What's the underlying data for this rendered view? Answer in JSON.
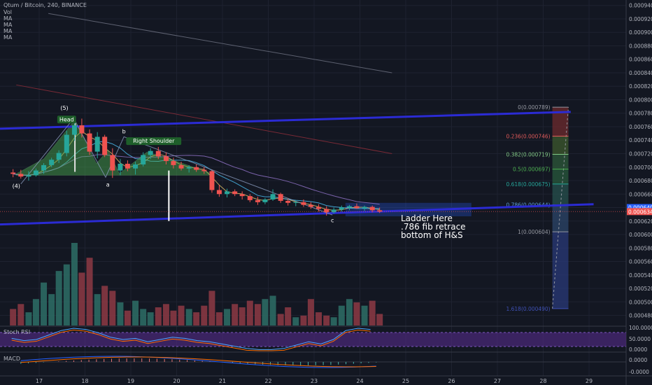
{
  "header": {
    "symbol_line": "Qtum / Bitcoin, 240, BINANCE",
    "indicators": [
      "Vol",
      "MA",
      "MA",
      "MA",
      "MA"
    ]
  },
  "annotations": {
    "head": "Head",
    "right_shoulder": "Right Shoulder",
    "wave_5": "(5)",
    "wave_4": "(4)",
    "wave_a": "a",
    "wave_b": "b",
    "wave_c": "c",
    "note_lines": [
      "Ladder Here",
      ".786 fib retrace",
      "bottom of H&S"
    ]
  },
  "fib_levels": [
    {
      "label": "0(0.000789)",
      "value": 0.000789,
      "color": "#9598a1"
    },
    {
      "label": "0.236(0.000746)",
      "value": 0.000746,
      "color": "#e05a5a"
    },
    {
      "label": "0.382(0.000719)",
      "value": 0.000719,
      "color": "#81c784"
    },
    {
      "label": "0.5(0.000697)",
      "value": 0.000697,
      "color": "#4caf50"
    },
    {
      "label": "0.618(0.000675)",
      "value": 0.000675,
      "color": "#26a69a"
    },
    {
      "label": "0.786(0.000644)",
      "value": 0.000644,
      "color": "#5d9bd8"
    },
    {
      "label": "1(0.000604)",
      "value": 0.000604,
      "color": "#9598a1"
    },
    {
      "label": "1.618(0.000490)",
      "value": 0.00049,
      "color": "#3f51b5"
    }
  ],
  "price_badges": [
    {
      "text": "0.000640",
      "value": 0.00064,
      "color": "#2962ff"
    },
    {
      "text": "0.000634",
      "value": 0.000634,
      "color": "#ef5350"
    }
  ],
  "panes": {
    "stoch_rsi": {
      "label": "Stoch RSI",
      "ticks": [
        "100.0000",
        "50.0000",
        "0.0000"
      ]
    },
    "macd": {
      "label": "MACD",
      "ticks": [
        "0.0000",
        "-0.0000"
      ]
    }
  },
  "colors": {
    "up": "#26a69a",
    "down": "#ef5350",
    "trendline": "#2b2bd4",
    "pattern_fill": "#4caf50"
  },
  "chart_data": {
    "type": "candlestick",
    "title": "Qtum / Bitcoin, 240, BINANCE",
    "y_ticks": [
      "0.000940",
      "0.000920",
      "0.000900",
      "0.000880",
      "0.000860",
      "0.000840",
      "0.000820",
      "0.000800",
      "0.000780",
      "0.000760",
      "0.000740",
      "0.000720",
      "0.000700",
      "0.000680",
      "0.000660",
      "0.000640",
      "0.000620",
      "0.000600",
      "0.000580",
      "0.000560",
      "0.000540",
      "0.000520",
      "0.000500",
      "0.000480"
    ],
    "x_ticks": [
      "17",
      "18",
      "19",
      "20",
      "21",
      "22",
      "23",
      "24",
      "25",
      "26",
      "27",
      "28",
      "29"
    ],
    "ylim": [
      0.000465,
      0.000948
    ],
    "xlim": [
      16.3,
      29.5
    ],
    "candles": [
      {
        "t": 16.43,
        "o": 0.000692,
        "h": 0.000697,
        "l": 0.000685,
        "c": 0.00069
      },
      {
        "t": 16.6,
        "o": 0.00069,
        "h": 0.000696,
        "l": 0.000683,
        "c": 0.000686
      },
      {
        "t": 16.77,
        "o": 0.000686,
        "h": 0.000694,
        "l": 0.00068,
        "c": 0.000688
      },
      {
        "t": 16.93,
        "o": 0.000688,
        "h": 0.000698,
        "l": 0.000686,
        "c": 0.000695
      },
      {
        "t": 17.1,
        "o": 0.000695,
        "h": 0.000706,
        "l": 0.00069,
        "c": 0.000703
      },
      {
        "t": 17.27,
        "o": 0.000703,
        "h": 0.000714,
        "l": 0.0007,
        "c": 0.000711
      },
      {
        "t": 17.43,
        "o": 0.000711,
        "h": 0.000725,
        "l": 0.000706,
        "c": 0.000721
      },
      {
        "t": 17.6,
        "o": 0.000721,
        "h": 0.000754,
        "l": 0.000716,
        "c": 0.000748
      },
      {
        "t": 17.77,
        "o": 0.000748,
        "h": 0.00077,
        "l": 0.000739,
        "c": 0.000762
      },
      {
        "t": 17.93,
        "o": 0.000762,
        "h": 0.000772,
        "l": 0.000744,
        "c": 0.00075
      },
      {
        "t": 18.1,
        "o": 0.00075,
        "h": 0.000756,
        "l": 0.000718,
        "c": 0.000723
      },
      {
        "t": 18.27,
        "o": 0.000723,
        "h": 0.000752,
        "l": 0.000713,
        "c": 0.000745
      },
      {
        "t": 18.43,
        "o": 0.000745,
        "h": 0.000748,
        "l": 0.000715,
        "c": 0.000718
      },
      {
        "t": 18.6,
        "o": 0.000718,
        "h": 0.000728,
        "l": 0.000684,
        "c": 0.000695
      },
      {
        "t": 18.77,
        "o": 0.000695,
        "h": 0.000712,
        "l": 0.000688,
        "c": 0.000705
      },
      {
        "t": 18.93,
        "o": 0.000705,
        "h": 0.00071,
        "l": 0.000694,
        "c": 0.000698
      },
      {
        "t": 19.1,
        "o": 0.000698,
        "h": 0.000708,
        "l": 0.000689,
        "c": 0.000704
      },
      {
        "t": 19.27,
        "o": 0.000704,
        "h": 0.000722,
        "l": 0.000701,
        "c": 0.000718
      },
      {
        "t": 19.43,
        "o": 0.000718,
        "h": 0.000728,
        "l": 0.000712,
        "c": 0.000724
      },
      {
        "t": 19.6,
        "o": 0.000724,
        "h": 0.00073,
        "l": 0.000712,
        "c": 0.000716
      },
      {
        "t": 19.77,
        "o": 0.000716,
        "h": 0.000722,
        "l": 0.000704,
        "c": 0.000709
      },
      {
        "t": 19.93,
        "o": 0.000709,
        "h": 0.000714,
        "l": 0.000698,
        "c": 0.000703
      },
      {
        "t": 20.1,
        "o": 0.000703,
        "h": 0.000708,
        "l": 0.000695,
        "c": 0.000698
      },
      {
        "t": 20.27,
        "o": 0.000698,
        "h": 0.000703,
        "l": 0.000692,
        "c": 0.0007
      },
      {
        "t": 20.43,
        "o": 0.0007,
        "h": 0.000704,
        "l": 0.000693,
        "c": 0.000696
      },
      {
        "t": 20.6,
        "o": 0.000696,
        "h": 0.0007,
        "l": 0.00069,
        "c": 0.000694
      },
      {
        "t": 20.77,
        "o": 0.000694,
        "h": 0.000696,
        "l": 0.000662,
        "c": 0.000666
      },
      {
        "t": 20.93,
        "o": 0.000666,
        "h": 0.000674,
        "l": 0.000656,
        "c": 0.00066
      },
      {
        "t": 21.1,
        "o": 0.00066,
        "h": 0.000668,
        "l": 0.000655,
        "c": 0.000664
      },
      {
        "t": 21.27,
        "o": 0.000664,
        "h": 0.000667,
        "l": 0.000657,
        "c": 0.00066
      },
      {
        "t": 21.43,
        "o": 0.00066,
        "h": 0.000664,
        "l": 0.000652,
        "c": 0.000657
      },
      {
        "t": 21.6,
        "o": 0.000657,
        "h": 0.00066,
        "l": 0.000648,
        "c": 0.000651
      },
      {
        "t": 21.77,
        "o": 0.000651,
        "h": 0.000656,
        "l": 0.000644,
        "c": 0.000648
      },
      {
        "t": 21.93,
        "o": 0.000648,
        "h": 0.000654,
        "l": 0.000645,
        "c": 0.000652
      },
      {
        "t": 22.1,
        "o": 0.000652,
        "h": 0.000667,
        "l": 0.00065,
        "c": 0.00066
      },
      {
        "t": 22.27,
        "o": 0.00066,
        "h": 0.000662,
        "l": 0.000647,
        "c": 0.00065
      },
      {
        "t": 22.43,
        "o": 0.00065,
        "h": 0.000653,
        "l": 0.000643,
        "c": 0.000647
      },
      {
        "t": 22.6,
        "o": 0.000647,
        "h": 0.000651,
        "l": 0.000642,
        "c": 0.000648
      },
      {
        "t": 22.77,
        "o": 0.000648,
        "h": 0.000652,
        "l": 0.000641,
        "c": 0.000644
      },
      {
        "t": 22.93,
        "o": 0.000644,
        "h": 0.000648,
        "l": 0.000638,
        "c": 0.000641
      },
      {
        "t": 23.1,
        "o": 0.000641,
        "h": 0.000645,
        "l": 0.000634,
        "c": 0.000638
      },
      {
        "t": 23.27,
        "o": 0.000638,
        "h": 0.000642,
        "l": 0.000628,
        "c": 0.000633
      },
      {
        "t": 23.43,
        "o": 0.000633,
        "h": 0.00064,
        "l": 0.000631,
        "c": 0.000637
      },
      {
        "t": 23.6,
        "o": 0.000637,
        "h": 0.000643,
        "l": 0.000634,
        "c": 0.00064
      },
      {
        "t": 23.77,
        "o": 0.00064,
        "h": 0.000644,
        "l": 0.000636,
        "c": 0.000642
      },
      {
        "t": 23.93,
        "o": 0.000642,
        "h": 0.000646,
        "l": 0.000638,
        "c": 0.000639
      },
      {
        "t": 24.1,
        "o": 0.000639,
        "h": 0.000643,
        "l": 0.000635,
        "c": 0.000641
      },
      {
        "t": 24.27,
        "o": 0.000641,
        "h": 0.000643,
        "l": 0.000633,
        "c": 0.000636
      },
      {
        "t": 24.43,
        "o": 0.000636,
        "h": 0.00064,
        "l": 0.000632,
        "c": 0.000634
      }
    ],
    "volume_relative": [
      0.2,
      0.26,
      0.16,
      0.32,
      0.52,
      0.38,
      0.66,
      0.74,
      1.0,
      0.64,
      0.82,
      0.38,
      0.48,
      0.42,
      0.28,
      0.18,
      0.3,
      0.2,
      0.16,
      0.22,
      0.26,
      0.18,
      0.24,
      0.2,
      0.16,
      0.24,
      0.42,
      0.16,
      0.2,
      0.26,
      0.22,
      0.3,
      0.26,
      0.32,
      0.36,
      0.14,
      0.22,
      0.1,
      0.12,
      0.32,
      0.16,
      0.12,
      0.1,
      0.24,
      0.32,
      0.28,
      0.24,
      0.3,
      0.14
    ]
  }
}
